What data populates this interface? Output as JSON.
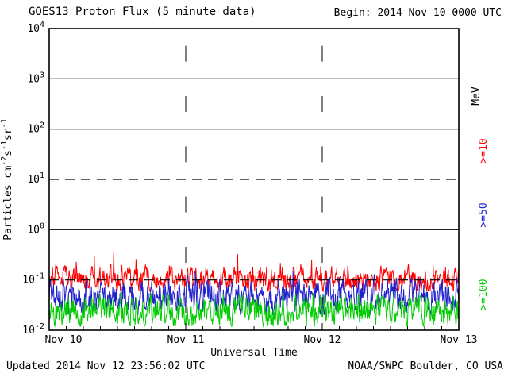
{
  "header": {
    "title": "GOES13 Proton Flux (5 minute data)",
    "begin": "Begin: 2014 Nov 10 0000 UTC"
  },
  "footer": {
    "updated": "Updated 2014 Nov 12 23:56:02 UTC",
    "source": "NOAA/SWPC Boulder, CO USA"
  },
  "chart_data": {
    "type": "line",
    "title": "GOES13 Proton Flux (5 minute data)",
    "xlabel": "Universal Time",
    "ylabel_parts": [
      [
        "Particles cm",
        "n"
      ],
      [
        "-2",
        "s"
      ],
      [
        "s",
        "n"
      ],
      [
        "-1",
        "s"
      ],
      [
        "sr",
        "n"
      ],
      [
        "-1",
        "s"
      ]
    ],
    "y_scale": "log",
    "ylim_exp": [
      -2,
      4
    ],
    "y_ticks_exp": [
      4,
      3,
      2,
      1,
      0,
      -1,
      -2
    ],
    "grid": {
      "solid_exp": [
        3,
        2,
        0
      ],
      "dashed_exp": [
        1,
        -1
      ],
      "vertical_days": [
        1,
        2
      ]
    },
    "x_range_days": 3,
    "minor_tick_hours": 3,
    "x_ticks": [
      {
        "label": "Nov 10",
        "day": 0
      },
      {
        "label": "Nov 11",
        "day": 1
      },
      {
        "label": "Nov 12",
        "day": 2
      },
      {
        "label": "Nov 13",
        "day": 3
      }
    ],
    "right_labels": [
      {
        "text": "MeV",
        "color": "#000000"
      },
      {
        "text": ">=10",
        "color": "#ff0000"
      },
      {
        "text": ">=50",
        "color": "#2222cc"
      },
      {
        "text": ">=100",
        "color": "#00cc00"
      }
    ],
    "series": [
      {
        "name": ">=10",
        "color": "#ff0000",
        "baseline": 0.105,
        "log_spread": 0.4,
        "spike_prob": 0.06,
        "spike_log": 0.3,
        "min": 0.06
      },
      {
        "name": ">=50",
        "color": "#2222cc",
        "baseline": 0.048,
        "log_spread": 0.55,
        "spike_prob": 0.04,
        "spike_log": 0.22,
        "min": 0.02
      },
      {
        "name": ">=100",
        "color": "#00cc00",
        "baseline": 0.024,
        "log_spread": 0.5,
        "spike_prob": 0.03,
        "spike_log": 0.18,
        "min": 0.012
      }
    ],
    "points_per_series": 864,
    "seed": 20141110,
    "note": "Quiet-time background proton flux noise bands; red >=10 MeV ~0.1, blue >=50 MeV ~0.05, green >=100 MeV ~0.025 particles cm-2 s-1 sr-1"
  },
  "colors": {
    "frame": "#000000",
    "background": "#ffffff"
  }
}
